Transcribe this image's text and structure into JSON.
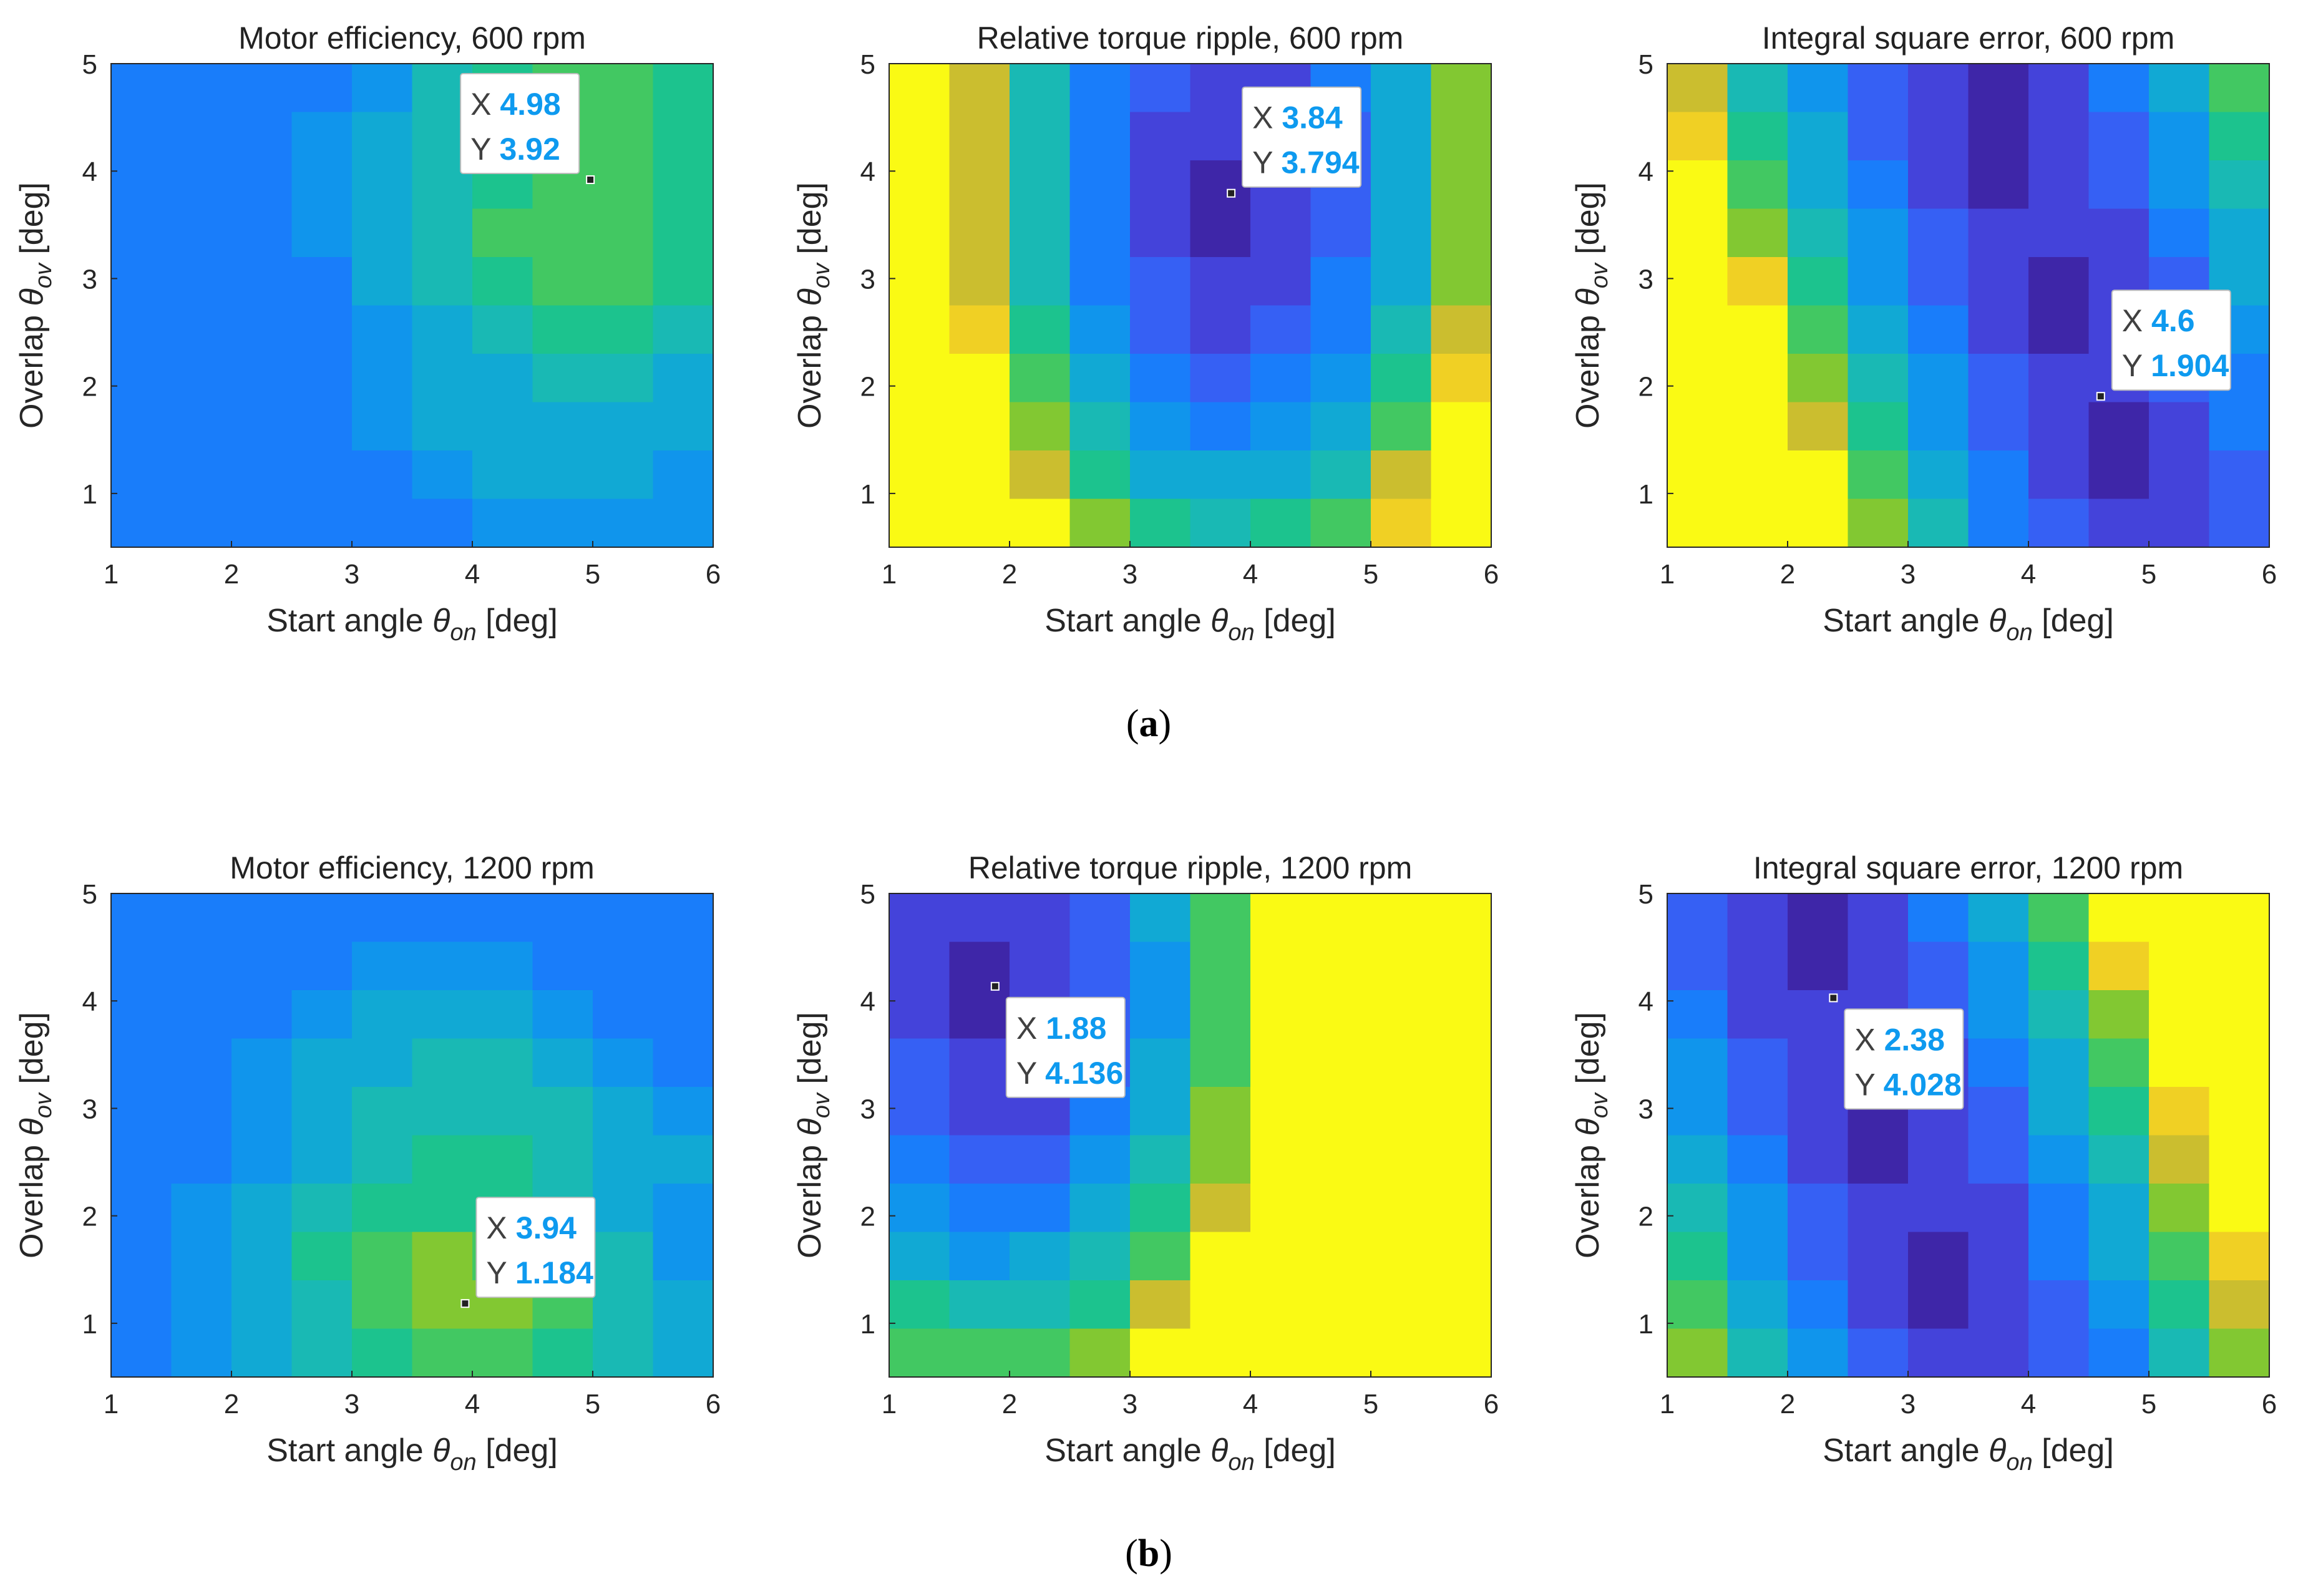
{
  "figure": {
    "panel_labels": [
      "(a)",
      "(b)"
    ],
    "panel_label_letters": [
      "a",
      "b"
    ]
  },
  "chart_data": [
    {
      "type": "contour",
      "title": "Motor efficiency, 600 rpm",
      "xlabel": "Start angle θon [deg]",
      "ylabel": "Overlap θov [deg]",
      "xlabel_parts": {
        "text": "Start angle ",
        "symbol": "θ",
        "sub": "on",
        "unit": " [deg]"
      },
      "ylabel_parts": {
        "text": "Overlap ",
        "symbol": "θ",
        "sub": "ov",
        "unit": " [deg]"
      },
      "xlim": [
        1,
        6
      ],
      "ylim": [
        0.5,
        5
      ],
      "xticks": [
        1,
        2,
        3,
        4,
        5,
        6
      ],
      "yticks": [
        1,
        2,
        3,
        4,
        5
      ],
      "colormap": "parula",
      "shape": "efficiency",
      "datatip": {
        "x": 4.98,
        "y": 3.92,
        "x_label": "X",
        "y_label": "Y",
        "x_text": "4.98",
        "y_text": "3.92"
      }
    },
    {
      "type": "contour",
      "title": "Relative torque ripple, 600 rpm",
      "xlabel": "Start angle θon [deg]",
      "ylabel": "Overlap θov [deg]",
      "xlabel_parts": {
        "text": "Start angle ",
        "symbol": "θ",
        "sub": "on",
        "unit": " [deg]"
      },
      "ylabel_parts": {
        "text": "Overlap ",
        "symbol": "θ",
        "sub": "ov",
        "unit": " [deg]"
      },
      "xlim": [
        1,
        6
      ],
      "ylim": [
        0.5,
        5
      ],
      "xticks": [
        1,
        2,
        3,
        4,
        5,
        6
      ],
      "yticks": [
        1,
        2,
        3,
        4,
        5
      ],
      "colormap": "parula",
      "shape": "ripple",
      "datatip": {
        "x": 3.84,
        "y": 3.794,
        "x_label": "X",
        "y_label": "Y",
        "x_text": "3.84",
        "y_text": "3.794"
      }
    },
    {
      "type": "contour",
      "title": "Integral square error, 600 rpm",
      "xlabel": "Start angle θon [deg]",
      "ylabel": "Overlap θov [deg]",
      "xlabel_parts": {
        "text": "Start angle ",
        "symbol": "θ",
        "sub": "on",
        "unit": " [deg]"
      },
      "ylabel_parts": {
        "text": "Overlap ",
        "symbol": "θ",
        "sub": "ov",
        "unit": " [deg]"
      },
      "xlim": [
        1,
        6
      ],
      "ylim": [
        0.5,
        5
      ],
      "xticks": [
        1,
        2,
        3,
        4,
        5,
        6
      ],
      "yticks": [
        1,
        2,
        3,
        4,
        5
      ],
      "colormap": "parula",
      "shape": "ise",
      "datatip": {
        "x": 4.6,
        "y": 1.904,
        "x_label": "X",
        "y_label": "Y",
        "x_text": "4.6",
        "y_text": "1.904"
      }
    },
    {
      "type": "contour",
      "title": "Motor efficiency, 1200 rpm",
      "xlabel": "Start angle θon [deg]",
      "ylabel": "Overlap θov [deg]",
      "xlabel_parts": {
        "text": "Start angle ",
        "symbol": "θ",
        "sub": "on",
        "unit": " [deg]"
      },
      "ylabel_parts": {
        "text": "Overlap ",
        "symbol": "θ",
        "sub": "ov",
        "unit": " [deg]"
      },
      "xlim": [
        1,
        6
      ],
      "ylim": [
        0.5,
        5
      ],
      "xticks": [
        1,
        2,
        3,
        4,
        5,
        6
      ],
      "yticks": [
        1,
        2,
        3,
        4,
        5
      ],
      "colormap": "parula",
      "shape": "efficiency",
      "datatip": {
        "x": 3.94,
        "y": 1.184,
        "x_label": "X",
        "y_label": "Y",
        "x_text": "3.94",
        "y_text": "1.184"
      }
    },
    {
      "type": "contour",
      "title": "Relative torque ripple, 1200 rpm",
      "xlabel": "Start angle θon [deg]",
      "ylabel": "Overlap θov [deg]",
      "xlabel_parts": {
        "text": "Start angle ",
        "symbol": "θ",
        "sub": "on",
        "unit": " [deg]"
      },
      "ylabel_parts": {
        "text": "Overlap ",
        "symbol": "θ",
        "sub": "ov",
        "unit": " [deg]"
      },
      "xlim": [
        1,
        6
      ],
      "ylim": [
        0.5,
        5
      ],
      "xticks": [
        1,
        2,
        3,
        4,
        5,
        6
      ],
      "yticks": [
        1,
        2,
        3,
        4,
        5
      ],
      "colormap": "parula",
      "shape": "ripple",
      "datatip": {
        "x": 1.88,
        "y": 4.136,
        "x_label": "X",
        "y_label": "Y",
        "x_text": "1.88",
        "y_text": "4.136"
      }
    },
    {
      "type": "contour",
      "title": "Integral square error, 1200 rpm",
      "xlabel": "Start angle θon [deg]",
      "ylabel": "Overlap θov [deg]",
      "xlabel_parts": {
        "text": "Start angle ",
        "symbol": "θ",
        "sub": "on",
        "unit": " [deg]"
      },
      "ylabel_parts": {
        "text": "Overlap ",
        "symbol": "θ",
        "sub": "ov",
        "unit": " [deg]"
      },
      "xlim": [
        1,
        6
      ],
      "ylim": [
        0.5,
        5
      ],
      "xticks": [
        1,
        2,
        3,
        4,
        5,
        6
      ],
      "yticks": [
        1,
        2,
        3,
        4,
        5
      ],
      "colormap": "parula",
      "shape": "ise",
      "datatip": {
        "x": 2.38,
        "y": 4.028,
        "x_label": "X",
        "y_label": "Y",
        "x_text": "2.38",
        "y_text": "4.028"
      }
    }
  ]
}
